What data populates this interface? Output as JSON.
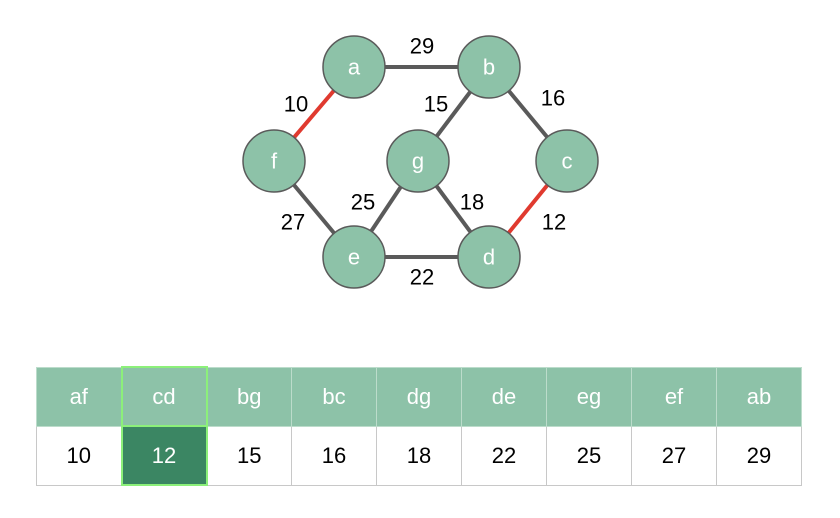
{
  "colors": {
    "node_fill": "#8dc2a8",
    "node_stroke": "#5a5a5a",
    "edge_default": "#5a5a5a",
    "edge_selected": "#e03a2f",
    "header_fill": "#8dc2a8",
    "highlight_fill": "#3b8663",
    "highlight_border": "#8cf07a"
  },
  "graph": {
    "nodes": [
      {
        "id": "a",
        "label": "a"
      },
      {
        "id": "b",
        "label": "b"
      },
      {
        "id": "c",
        "label": "c"
      },
      {
        "id": "d",
        "label": "d"
      },
      {
        "id": "e",
        "label": "e"
      },
      {
        "id": "f",
        "label": "f"
      },
      {
        "id": "g",
        "label": "g"
      }
    ],
    "edges": [
      {
        "id": "ab",
        "from": "a",
        "to": "b",
        "weight": "29",
        "selected": false
      },
      {
        "id": "bc",
        "from": "b",
        "to": "c",
        "weight": "16",
        "selected": false
      },
      {
        "id": "bg",
        "from": "b",
        "to": "g",
        "weight": "15",
        "selected": false
      },
      {
        "id": "af",
        "from": "a",
        "to": "f",
        "weight": "10",
        "selected": true
      },
      {
        "id": "cd",
        "from": "c",
        "to": "d",
        "weight": "12",
        "selected": true
      },
      {
        "id": "ef",
        "from": "e",
        "to": "f",
        "weight": "27",
        "selected": false
      },
      {
        "id": "eg",
        "from": "e",
        "to": "g",
        "weight": "25",
        "selected": false
      },
      {
        "id": "dg",
        "from": "d",
        "to": "g",
        "weight": "18",
        "selected": false
      },
      {
        "id": "de",
        "from": "d",
        "to": "e",
        "weight": "22",
        "selected": false
      }
    ]
  },
  "table": {
    "highlight_index": 1,
    "headers": [
      "af",
      "cd",
      "bg",
      "bc",
      "dg",
      "de",
      "eg",
      "ef",
      "ab"
    ],
    "values": [
      "10",
      "12",
      "15",
      "16",
      "18",
      "22",
      "25",
      "27",
      "29"
    ]
  }
}
